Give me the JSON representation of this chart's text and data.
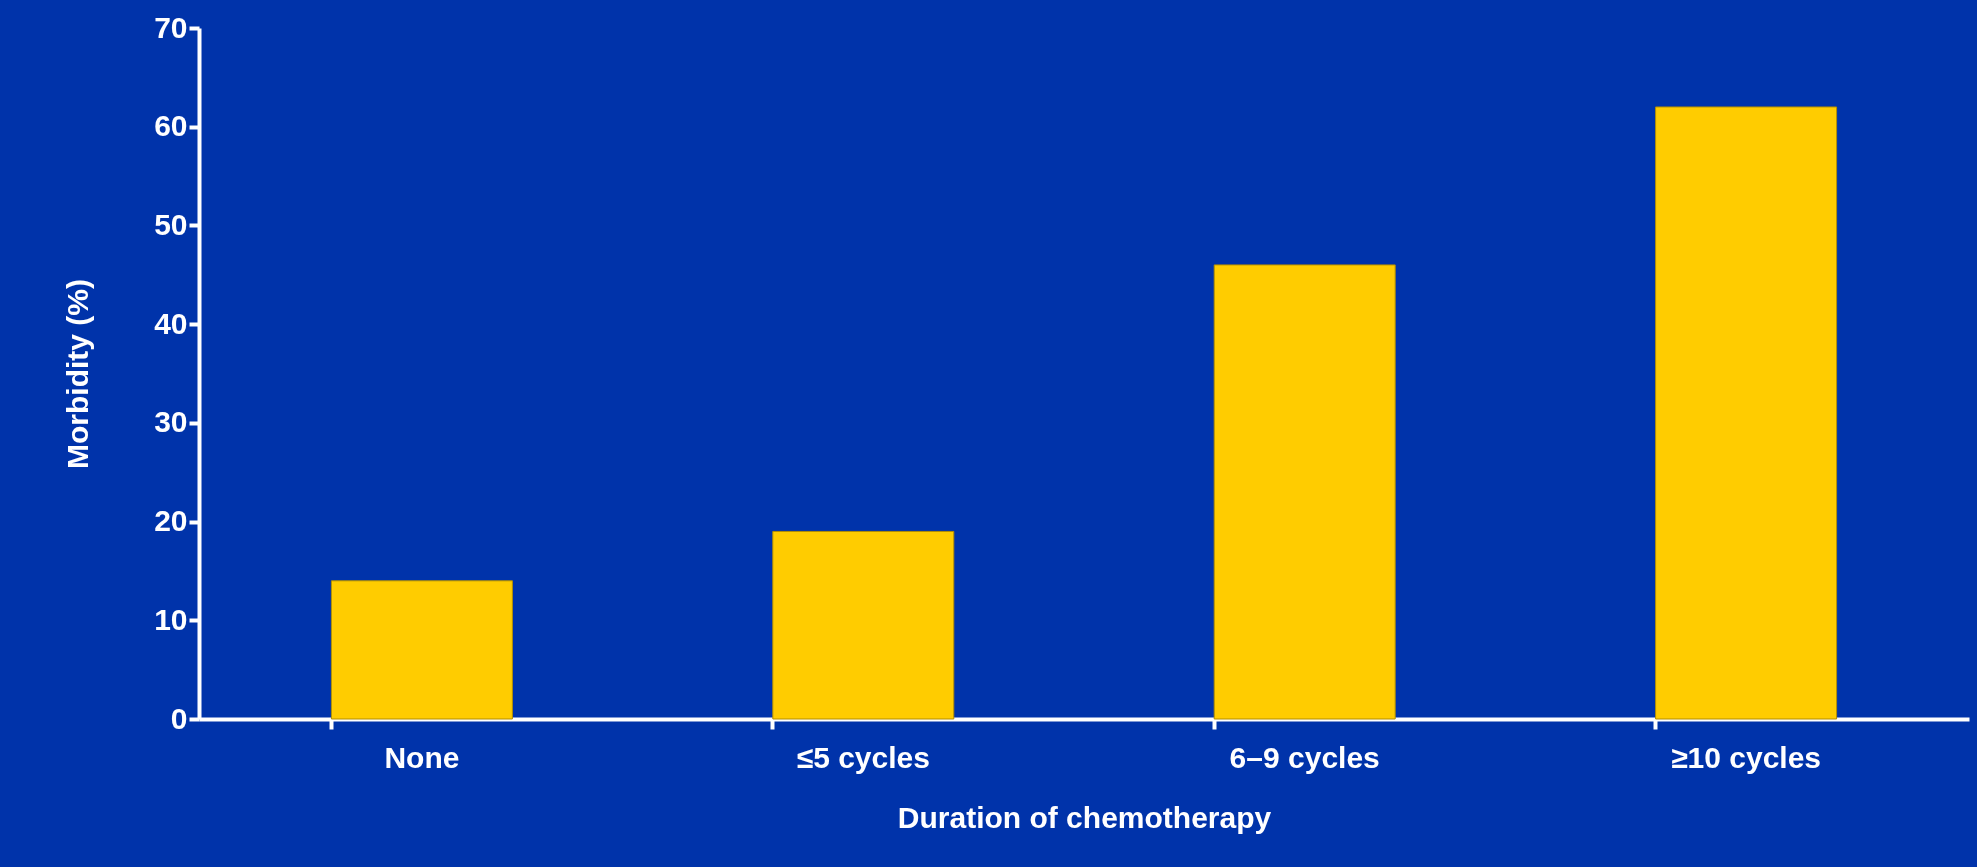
{
  "chart_data": {
    "type": "bar",
    "xlabel": "Duration of chemotherapy",
    "ylabel": "Morbidity (%)",
    "categories": [
      "None",
      "≤5 cycles",
      "6–9 cycles",
      "≥10 cycles"
    ],
    "values": [
      14,
      19,
      46,
      62
    ],
    "color": "#ffcc00",
    "ylim": [
      0,
      70
    ],
    "yticks": [
      0,
      10,
      20,
      30,
      40,
      50,
      60,
      70
    ],
    "grid": false
  }
}
